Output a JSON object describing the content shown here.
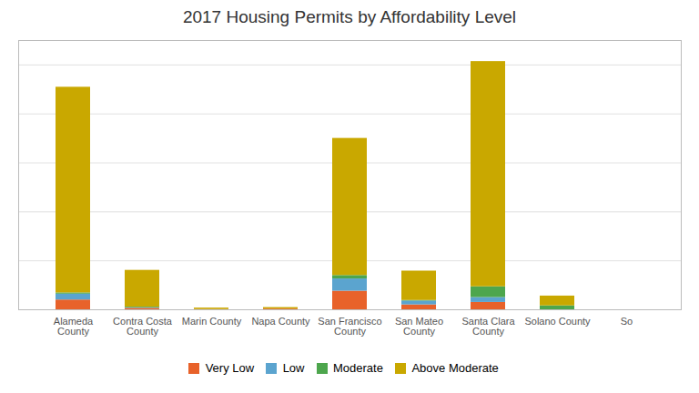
{
  "chart_data": {
    "type": "bar",
    "stacked": true,
    "title": "2017 Housing Permits by Affordability Level",
    "categories": [
      "Alameda\nCounty",
      "Contra Costa\nCounty",
      "Marin County",
      "Napa County",
      "San Francisco\nCounty",
      "San Mateo\nCounty",
      "Santa Clara\nCounty",
      "Solano County",
      "So"
    ],
    "series": [
      {
        "name": "Very Low",
        "color": "#E8622A",
        "values": [
          200,
          30,
          5,
          15,
          380,
          100,
          150,
          0,
          0
        ]
      },
      {
        "name": "Low",
        "color": "#5BA4CF",
        "values": [
          120,
          10,
          0,
          0,
          250,
          80,
          100,
          0,
          0
        ]
      },
      {
        "name": "Moderate",
        "color": "#4DA64D",
        "values": [
          25,
          15,
          0,
          0,
          70,
          10,
          220,
          80,
          0
        ]
      },
      {
        "name": "Above Moderate",
        "color": "#C9A800",
        "values": [
          4200,
          750,
          30,
          30,
          2800,
          600,
          4600,
          200,
          0
        ]
      }
    ],
    "ylim": [
      0,
      5500
    ],
    "yticks": [
      1000,
      2000,
      3000,
      4000,
      5000
    ],
    "grid": true,
    "tick_labels": "x",
    "legend": "bottom"
  }
}
